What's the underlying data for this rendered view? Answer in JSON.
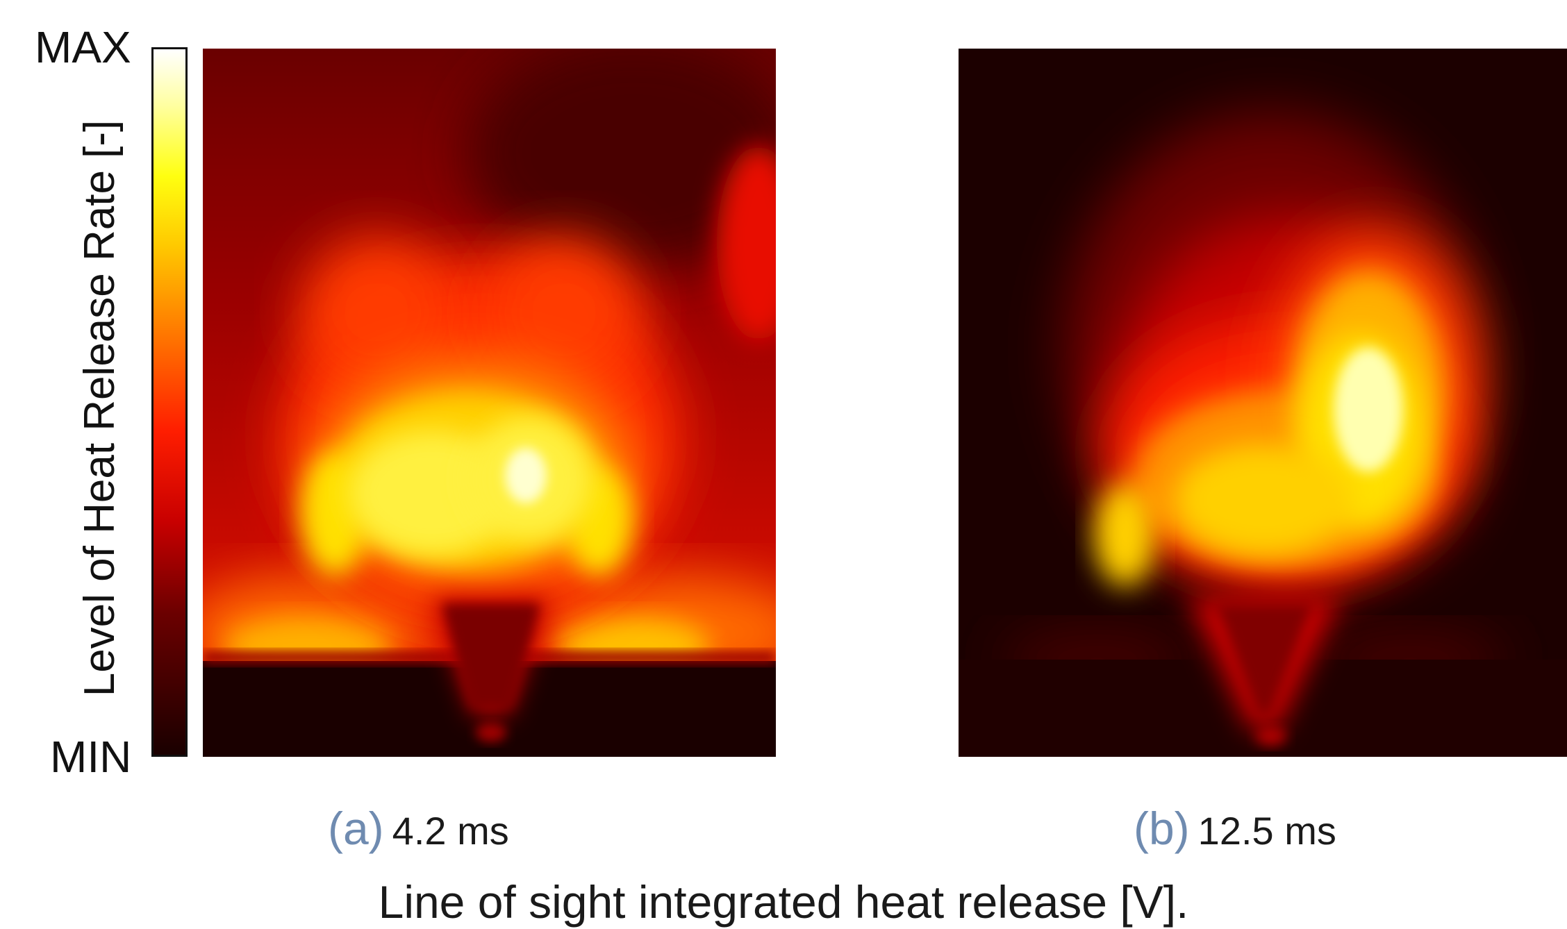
{
  "colorbar": {
    "max_label": "MAX",
    "min_label": "MIN",
    "axis_label": "Level of Heat Release Rate [-]",
    "colormap": "hot",
    "colors": [
      "#1a0000",
      "#6b0000",
      "#c80000",
      "#ff1e00",
      "#ff7a00",
      "#ffc800",
      "#ffff10",
      "#ffffa0",
      "#ffffff"
    ]
  },
  "panels": [
    {
      "tag": "(a)",
      "time": "4.2 ms"
    },
    {
      "tag": "(b)",
      "time": "12.5 ms"
    }
  ],
  "figure_caption": "Line of sight integrated heat release [V]."
}
